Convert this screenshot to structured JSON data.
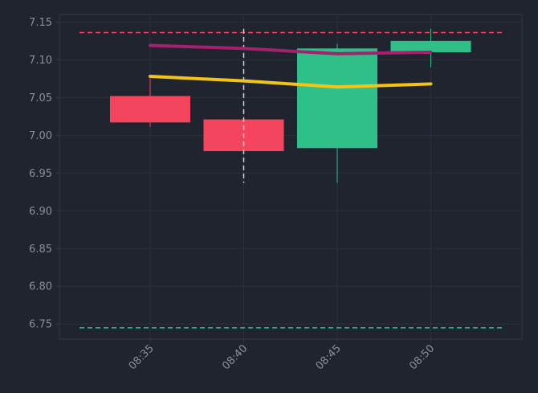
{
  "theme": {
    "background": "#1f242e",
    "grid": "#2b313c",
    "spine": "#343b47",
    "tick_label": "#8a8f98",
    "up": "#2fc089",
    "down": "#f4455e",
    "ma_fast": "#f2c417",
    "ma_slow": "#a3226e",
    "resistance": "#f4455e",
    "support": "#2fc089",
    "crosshair": "#d7dbe0"
  },
  "chart_data": {
    "type": "candlestick",
    "title": "",
    "xlabel": "",
    "ylabel": "",
    "categories": [
      "08:35",
      "08:40",
      "08:45",
      "08:50"
    ],
    "ylim": [
      6.73,
      7.16
    ],
    "y_ticks": [
      6.75,
      6.8,
      6.85,
      6.9,
      6.95,
      7.0,
      7.05,
      7.1,
      7.15
    ],
    "y_tick_labels": [
      "6.75",
      "6.80",
      "6.85",
      "6.90",
      "6.95",
      "7.00",
      "7.05",
      "7.10",
      "7.15"
    ],
    "grid": true,
    "legend": "none",
    "candles": [
      {
        "x": "08:35",
        "open": 7.052,
        "close": 7.017,
        "high": 7.075,
        "low": 7.011
      },
      {
        "x": "08:40",
        "open": 7.021,
        "close": 6.979,
        "high": 7.021,
        "low": 6.979
      },
      {
        "x": "08:45",
        "open": 6.983,
        "close": 7.115,
        "high": 7.121,
        "low": 6.937
      },
      {
        "x": "08:50",
        "open": 7.11,
        "close": 7.125,
        "high": 7.141,
        "low": 7.09
      }
    ],
    "series": [
      {
        "values": [
          7.078,
          7.072,
          7.064,
          7.068
        ],
        "color": "#f2c417"
      },
      {
        "values": [
          7.119,
          7.115,
          7.108,
          7.11
        ],
        "color": "#a3226e"
      }
    ],
    "reference_lines": [
      {
        "kind": "resistance",
        "y": 7.136,
        "style": "dashed"
      },
      {
        "kind": "support",
        "y": 6.745,
        "style": "dashed"
      }
    ],
    "crosshair": {
      "x": "08:40",
      "from": 6.937,
      "to": 7.141
    }
  }
}
